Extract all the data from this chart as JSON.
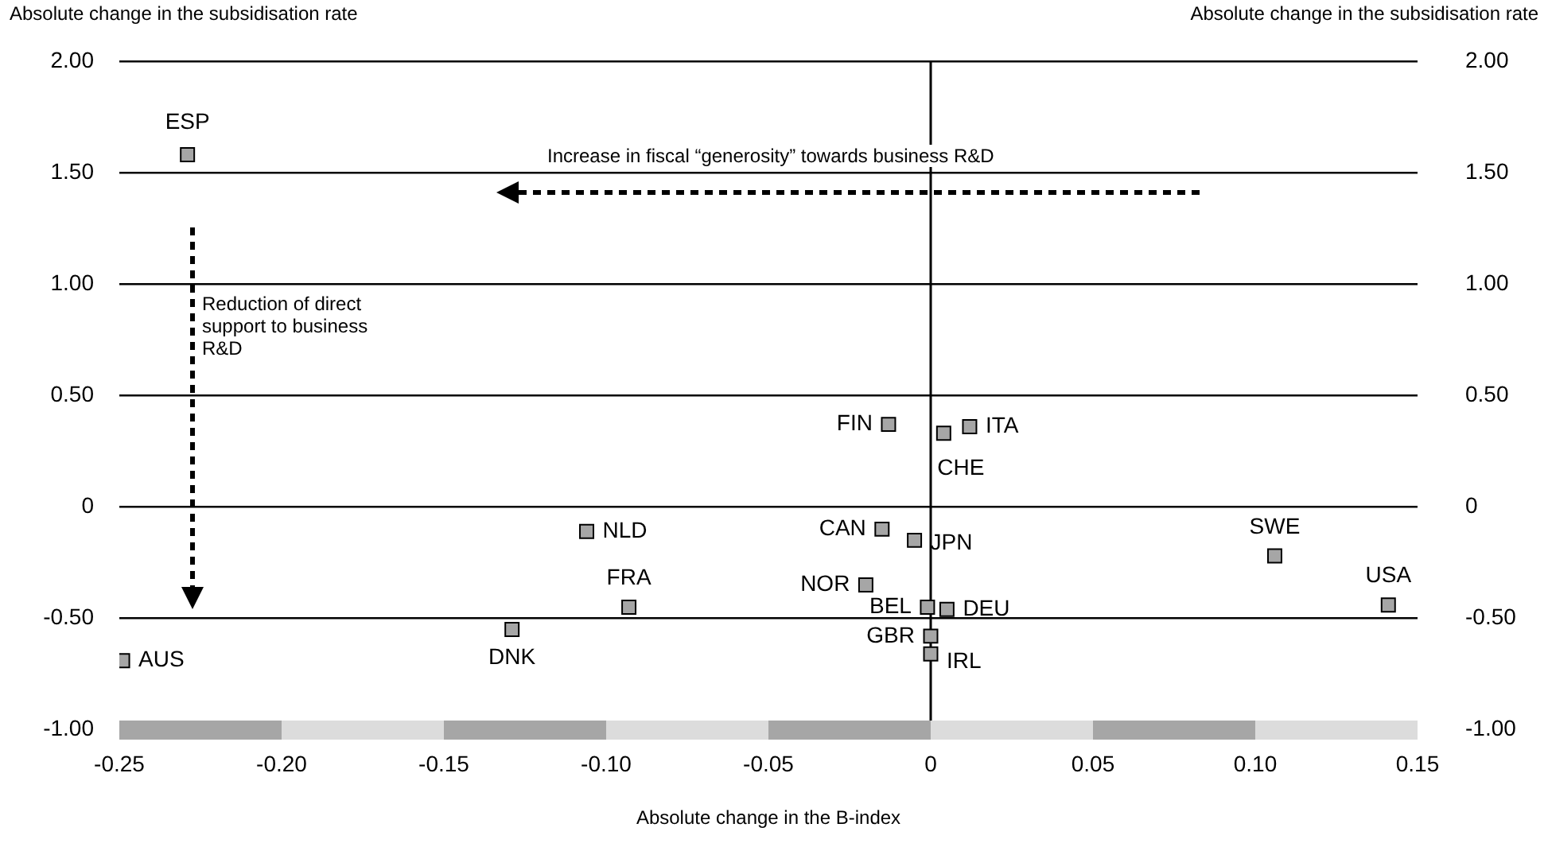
{
  "chart_data": {
    "type": "scatter",
    "xlabel": "Absolute change in the B-index",
    "ylabel": "Absolute change in the subsidisation rate",
    "y2label": "Absolute change in the subsidisation rate",
    "x": [
      -0.229,
      -0.249,
      -0.129,
      -0.093,
      -0.106,
      -0.013,
      0.004,
      0.012,
      -0.015,
      -0.005,
      -0.02,
      -0.001,
      0.005,
      0,
      0,
      0.106,
      0.141
    ],
    "values": [
      1.58,
      -0.69,
      -0.55,
      -0.45,
      -0.11,
      0.37,
      0.33,
      0.36,
      -0.1,
      -0.15,
      -0.35,
      -0.45,
      -0.46,
      -0.58,
      -0.66,
      -0.22,
      -0.44
    ],
    "color": "#a6a6a6",
    "marker": "square",
    "xlim": [
      -0.25,
      0.15
    ],
    "xticks": [
      -0.25,
      {
        "value": -0.2,
        "label": "-0.20"
      },
      -0.15,
      {
        "value": -0.1,
        "label": "-0.10"
      },
      -0.05,
      {
        "value": 0,
        "label": "0"
      },
      0.05,
      {
        "value": 0.1,
        "label": "0.10"
      },
      0.15
    ],
    "ylim": [
      -1,
      2
    ],
    "yticks": [
      {
        "value": -1,
        "label": "-1.00"
      },
      {
        "value": -0.5,
        "label": "-0.50"
      },
      {
        "value": 0,
        "label": "0"
      },
      {
        "value": 0.5,
        "label": "0.50"
      },
      {
        "value": 1,
        "label": "1.00"
      },
      {
        "value": 1.5,
        "label": "1.50"
      },
      {
        "value": 2,
        "label": "2.00"
      }
    ],
    "y2lim": [
      -1,
      2
    ],
    "y2ticks": [
      {
        "value": -1,
        "label": "-1.00"
      },
      {
        "value": -0.5,
        "label": "-0.50"
      },
      {
        "value": 0,
        "label": "0"
      },
      {
        "value": 0.5,
        "label": "0.50"
      },
      {
        "value": 1,
        "label": "1.00"
      },
      {
        "value": 1.5,
        "label": "1.50"
      },
      {
        "value": 2,
        "label": "2.00"
      }
    ],
    "grid": "y",
    "legend": false,
    "ref_lines": [
      {
        "axis": "x",
        "value": 0,
        "color": "#000000"
      }
    ],
    "annotations": [
      {
        "text": "ESP",
        "x": -0.229,
        "y": 1.58
      },
      {
        "text": "AUS",
        "x": -0.249,
        "y": -0.69
      },
      {
        "text": "DNK",
        "x": -0.129,
        "y": -0.55
      },
      {
        "text": "FRA",
        "x": -0.093,
        "y": -0.45
      },
      {
        "text": "NLD",
        "x": -0.106,
        "y": -0.11
      },
      {
        "text": "FIN",
        "x": -0.013,
        "y": 0.37
      },
      {
        "text": "CHE",
        "x": 0.004,
        "y": 0.33
      },
      {
        "text": "ITA",
        "x": 0.012,
        "y": 0.36
      },
      {
        "text": "CAN",
        "x": -0.015,
        "y": -0.1
      },
      {
        "text": "JPN",
        "x": -0.005,
        "y": -0.15
      },
      {
        "text": "NOR",
        "x": -0.02,
        "y": -0.35
      },
      {
        "text": "BEL",
        "x": -0.001,
        "y": -0.45
      },
      {
        "text": "DEU",
        "x": 0.005,
        "y": -0.46
      },
      {
        "text": "GBR",
        "x": 0,
        "y": -0.58
      },
      {
        "text": "IRL",
        "x": 0,
        "y": -0.66
      },
      {
        "text": "SWE",
        "x": 0.106,
        "y": -0.22
      },
      {
        "text": "USA",
        "x": 0.141,
        "y": -0.44
      },
      "Increase in fiscal “generosity” towards business R&D",
      "Reduction of direct support to business R&D"
    ]
  }
}
